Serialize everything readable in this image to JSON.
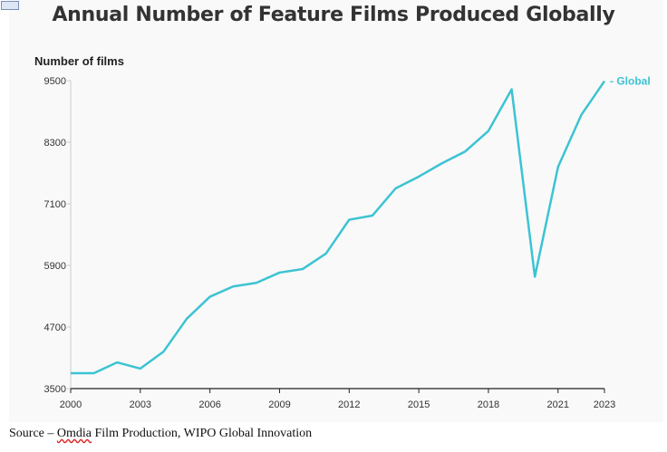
{
  "chart_data": {
    "type": "line",
    "title": "Annual Number of Feature Films Produced Globally",
    "ylabel": "Number of films",
    "xlabel": "",
    "x": [
      2000,
      2001,
      2002,
      2003,
      2004,
      2005,
      2006,
      2007,
      2008,
      2009,
      2010,
      2011,
      2012,
      2013,
      2014,
      2015,
      2016,
      2017,
      2018,
      2019,
      2020,
      2021,
      2022,
      2023
    ],
    "series": [
      {
        "name": "Global",
        "color": "#3cc3d3",
        "values": [
          3800,
          3800,
          4010,
          3890,
          4220,
          4860,
          5290,
          5490,
          5560,
          5760,
          5830,
          6130,
          6790,
          6870,
          7400,
          7630,
          7890,
          8120,
          8520,
          9330,
          5680,
          7820,
          8830,
          9490
        ]
      }
    ],
    "xticks": [
      "2000",
      "2003",
      "2006",
      "2009",
      "2012",
      "2015",
      "2018",
      "2021",
      "2023"
    ],
    "yticks": [
      "3500",
      "4700",
      "5900",
      "7100",
      "8300",
      "9500"
    ],
    "ylim": [
      3500,
      9500
    ],
    "xlim": [
      2000,
      2023
    ],
    "grid": false,
    "legend": "end-of-line label"
  },
  "source": {
    "prefix": "Source – ",
    "squiggle": "Omdia",
    "rest": " Film Production, WIPO Global Innovation"
  }
}
